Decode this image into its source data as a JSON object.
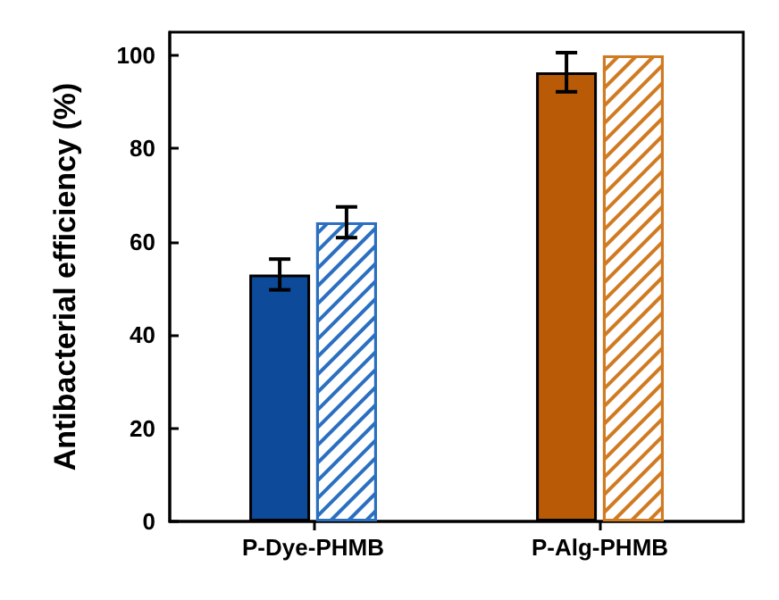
{
  "chart_data": {
    "type": "bar",
    "ylabel": "Antibacterial efficiency (%)",
    "categories": [
      "P-Dye-PHMB",
      "P-Alg-PHMB"
    ],
    "series": [
      {
        "colors": [
          "#0d4a9a",
          "#b85a06"
        ],
        "values": [
          53,
          96.4
        ],
        "errors": [
          3.3,
          4.2
        ]
      },
      {
        "colors": [
          "#2a6fc0",
          "#d07a22"
        ],
        "values": [
          64.2,
          100
        ],
        "errors": [
          3.3,
          null
        ]
      }
    ],
    "ylim": [
      0,
      105
    ],
    "yticks": [
      0,
      20,
      40,
      60,
      80,
      100
    ],
    "grid": false
  }
}
